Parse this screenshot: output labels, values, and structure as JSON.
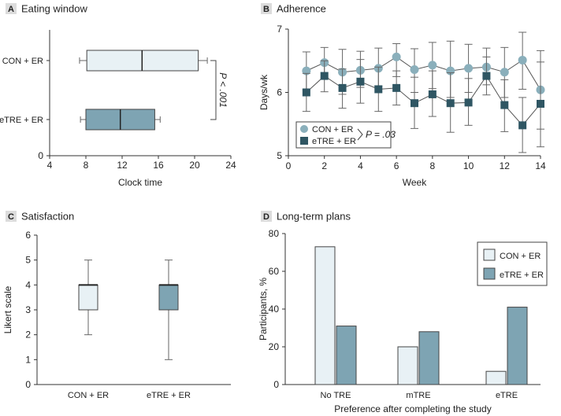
{
  "colors": {
    "con_fill": "#e8f1f5",
    "etre_fill": "#7ea4b3",
    "con_marker": "#8aafbb",
    "etre_marker": "#2f5663",
    "axis": "#333333",
    "whisker": "#666666",
    "badge_bg": "#dcdcdc"
  },
  "chart_data": [
    {
      "panel": "A",
      "type": "boxplot-horizontal",
      "title": "Eating window",
      "xlabel": "Clock time",
      "xlim": [
        4,
        24
      ],
      "xticks": [
        "4",
        "8",
        "12",
        "16",
        "20",
        "24"
      ],
      "ylim": [
        0,
        1
      ],
      "yticks": [
        "0"
      ],
      "categories": [
        "CON + ER",
        "eTRE + ER"
      ],
      "series": [
        {
          "name": "CON + ER",
          "min": 7.3,
          "q1": 8.1,
          "median": 14.2,
          "q3": 20.4,
          "max": 21.4
        },
        {
          "name": "eTRE + ER",
          "min": 7.4,
          "q1": 8.0,
          "median": 11.8,
          "q3": 15.6,
          "max": 16.2
        }
      ],
      "annotation": "P < .001"
    },
    {
      "panel": "B",
      "type": "line",
      "title": "Adherence",
      "xlabel": "Week",
      "ylabel": "Days/wk",
      "xlim": [
        0,
        14
      ],
      "ylim": [
        5,
        7
      ],
      "xticks": [
        "0",
        "2",
        "4",
        "6",
        "8",
        "10",
        "12",
        "14"
      ],
      "yticks": [
        "5",
        "6",
        "7"
      ],
      "x": [
        1,
        2,
        3,
        4,
        5,
        6,
        7,
        8,
        9,
        10,
        11,
        12,
        13,
        14
      ],
      "series": [
        {
          "name": "CON + ER",
          "values": [
            6.34,
            6.47,
            6.32,
            6.35,
            6.38,
            6.56,
            6.36,
            6.43,
            6.34,
            6.38,
            6.4,
            6.32,
            6.51,
            6.04
          ],
          "err_low": [
            6.04,
            6.23,
            5.97,
            6.08,
            6.1,
            6.25,
            6.0,
            6.06,
            5.92,
            6.0,
            6.12,
            5.92,
            6.05,
            5.42
          ],
          "err_high": [
            6.64,
            6.71,
            6.68,
            6.65,
            6.7,
            6.77,
            6.69,
            6.79,
            6.81,
            6.76,
            6.7,
            6.71,
            6.95,
            6.66
          ]
        },
        {
          "name": "eTRE + ER",
          "values": [
            6.0,
            6.26,
            6.07,
            6.17,
            6.05,
            6.07,
            5.83,
            5.97,
            5.83,
            5.84,
            6.26,
            5.8,
            5.48,
            5.82
          ],
          "err_low": [
            5.7,
            6.01,
            5.75,
            5.83,
            5.7,
            5.8,
            5.43,
            5.62,
            5.37,
            5.48,
            5.96,
            5.38,
            5.05,
            5.14
          ],
          "err_high": [
            6.3,
            6.5,
            6.37,
            6.52,
            6.4,
            6.34,
            6.24,
            6.34,
            6.31,
            6.22,
            6.56,
            6.2,
            5.92,
            6.48
          ]
        }
      ],
      "legend": [
        "CON + ER",
        "eTRE + ER"
      ],
      "annotation": "P = .03"
    },
    {
      "panel": "C",
      "type": "boxplot-vertical",
      "title": "Satisfaction",
      "ylabel": "Likert scale",
      "ylim": [
        0,
        6
      ],
      "yticks": [
        "0",
        "1",
        "2",
        "3",
        "4",
        "5",
        "6"
      ],
      "categories": [
        "CON + ER",
        "eTRE + ER"
      ],
      "series": [
        {
          "name": "CON + ER",
          "min": 2,
          "q1": 3,
          "median": 4,
          "q3": 4,
          "max": 5
        },
        {
          "name": "eTRE + ER",
          "min": 1,
          "q1": 3,
          "median": 4,
          "q3": 4,
          "max": 5
        }
      ]
    },
    {
      "panel": "D",
      "type": "bar",
      "title": "Long-term plans",
      "xlabel": "Preference after completing the study",
      "ylabel": "Participants, %",
      "ylim": [
        0,
        80
      ],
      "yticks": [
        "0",
        "20",
        "40",
        "60",
        "80"
      ],
      "categories": [
        "No TRE",
        "mTRE",
        "eTRE"
      ],
      "series": [
        {
          "name": "CON + ER",
          "values": [
            73,
            20,
            7
          ]
        },
        {
          "name": "eTRE + ER",
          "values": [
            31,
            28,
            41
          ]
        }
      ],
      "legend": [
        "CON + ER",
        "eTRE + ER"
      ]
    }
  ]
}
